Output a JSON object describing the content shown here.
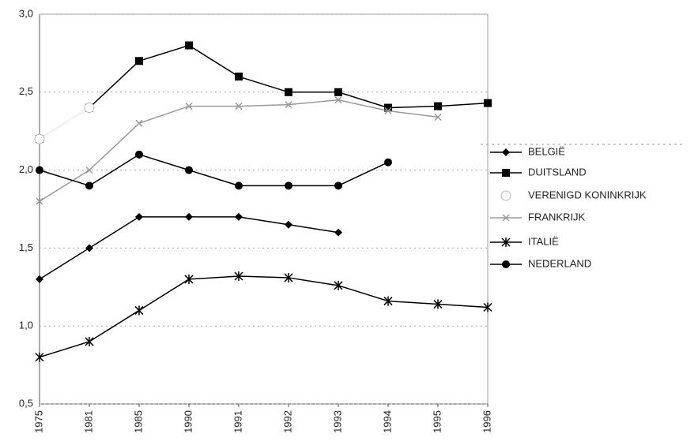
{
  "chart_data": {
    "type": "line",
    "categories": [
      "1975",
      "1981",
      "1985",
      "1990",
      "1991",
      "1992",
      "1993",
      "1994",
      "1995",
      "1996"
    ],
    "ylim": [
      0.5,
      3.0
    ],
    "yticks": [
      {
        "value": 0.5,
        "label": "0,5"
      },
      {
        "value": 1.0,
        "label": "1,0"
      },
      {
        "value": 1.5,
        "label": "1,5"
      },
      {
        "value": 2.0,
        "label": "2,0"
      },
      {
        "value": 2.5,
        "label": "2,5"
      },
      {
        "value": 3.0,
        "label": "3,0"
      }
    ],
    "grid": true,
    "legend": "right",
    "series": [
      {
        "name": "BELGIË",
        "color": "#000000",
        "marker": "diamond",
        "values": [
          1.3,
          1.5,
          1.7,
          1.7,
          1.7,
          1.65,
          1.6,
          null,
          null,
          null
        ]
      },
      {
        "name": "DUITSLAND",
        "color": "#000000",
        "marker": "square",
        "values": [
          2.2,
          2.4,
          2.7,
          2.8,
          2.6,
          2.5,
          2.5,
          2.4,
          2.41,
          2.43
        ]
      },
      {
        "name": "VERENIGD KONINKRIJK",
        "color": "#ffffff",
        "marker": "open-circle",
        "values": [
          2.2,
          2.4,
          null,
          null,
          null,
          null,
          null,
          null,
          null,
          null
        ]
      },
      {
        "name": "FRANKRIJK",
        "color": "#999999",
        "marker": "x",
        "values": [
          1.8,
          2.0,
          2.3,
          2.41,
          2.41,
          2.42,
          2.45,
          2.38,
          2.34,
          null
        ]
      },
      {
        "name": "ITALIË",
        "color": "#000000",
        "marker": "star",
        "values": [
          0.8,
          0.9,
          1.1,
          1.3,
          1.32,
          1.31,
          1.26,
          1.16,
          1.14,
          1.12
        ]
      },
      {
        "name": "NEDERLAND",
        "color": "#000000",
        "marker": "circle",
        "values": [
          2.0,
          1.9,
          2.1,
          2.0,
          1.9,
          1.9,
          1.9,
          2.05,
          null,
          null
        ]
      }
    ]
  }
}
